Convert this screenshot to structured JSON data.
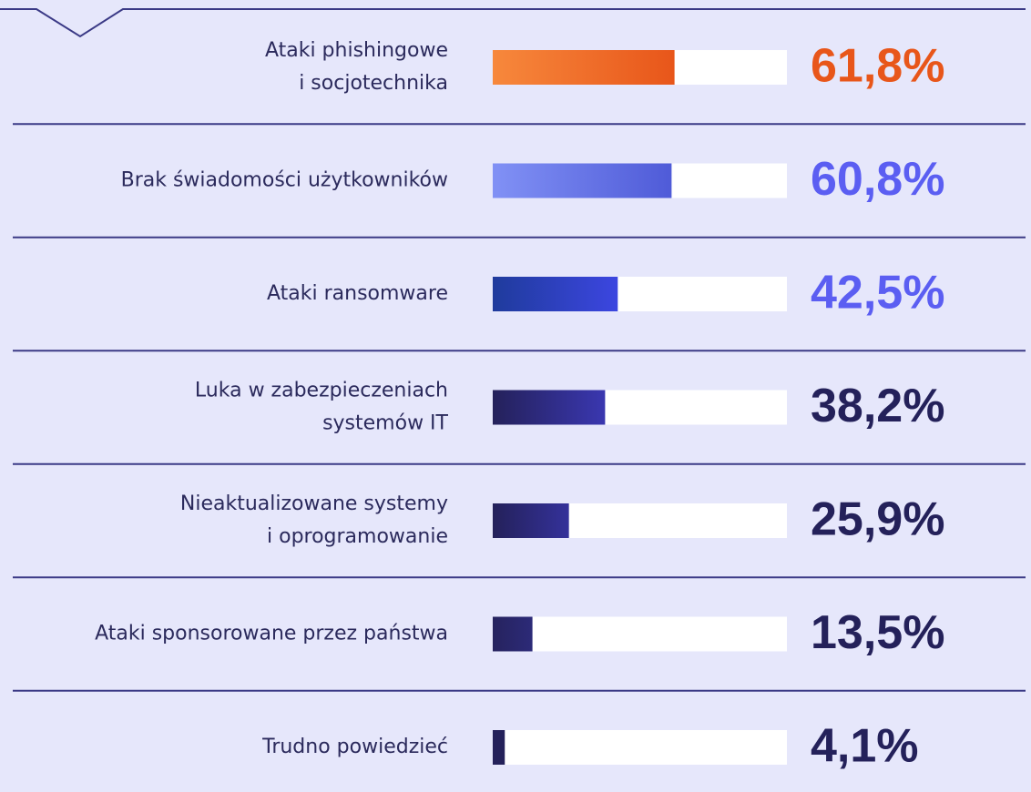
{
  "chart_data": {
    "type": "hbar",
    "categories": [
      [
        "Ataki phishingowe",
        "i socjotechnika"
      ],
      [
        "Brak świadomości użytkowników"
      ],
      [
        "Ataki ransomware"
      ],
      [
        "Luka w zabezpieczeniach",
        "systemów IT"
      ],
      [
        "Nieaktualizowane systemy",
        "i oprogramowanie"
      ],
      [
        "Ataki sponsorowane przez państwa"
      ],
      [
        "Trudno powiedzieć"
      ]
    ],
    "values": [
      61.8,
      60.8,
      42.5,
      38.2,
      25.9,
      13.5,
      4.1
    ],
    "value_labels": [
      "61,8%",
      "60,8%",
      "42,5%",
      "38,2%",
      "25,9%",
      "13,5%",
      "4,1%"
    ],
    "colors": [
      [
        "#f7883c",
        "#e8561a"
      ],
      [
        "#8191f5",
        "#4f5bd8"
      ],
      [
        "#1f3b9c",
        "#3c46e0"
      ],
      [
        "#24215a",
        "#3a37b0"
      ],
      [
        "#24215a",
        "#34319a"
      ],
      [
        "#26235e",
        "#2c2a78"
      ],
      [
        "#24215a",
        "#24215a"
      ]
    ],
    "label_colors": [
      "#e8561a",
      "#5b5ef2",
      "#5b5ef2",
      "#24215a",
      "#24215a",
      "#24215a",
      "#24215a"
    ],
    "xlim": [
      0,
      100
    ]
  }
}
